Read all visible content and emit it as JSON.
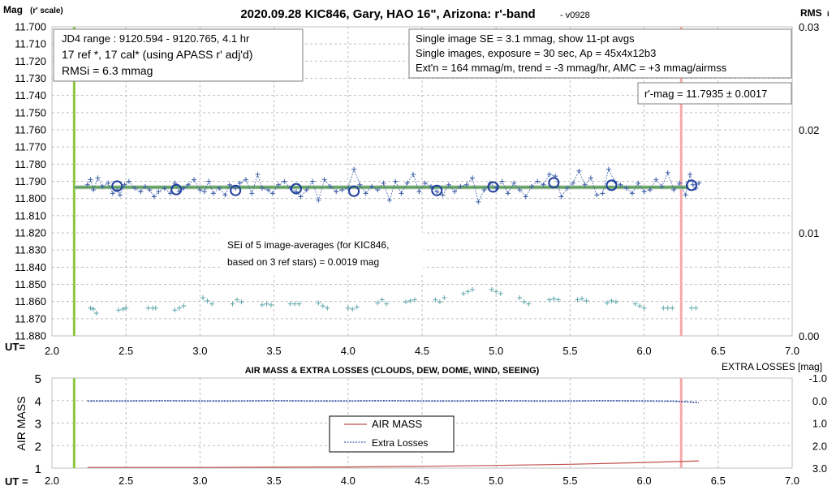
{
  "chart_data": [
    {
      "type": "scatter",
      "title": "2020.09.28 KIC846, Gary, HAO 16\", Arizona: r'-band",
      "title_suffix": "- v0928",
      "ylabel": "Mag",
      "ylabel_sub": "(r' scale)",
      "y2label": "RMS",
      "y2label_sub": "i",
      "xlabel": "UT=",
      "xlim": [
        2.0,
        7.0
      ],
      "ylim": [
        11.7,
        11.88
      ],
      "y_reversed": true,
      "y2lim": [
        0.0,
        0.03
      ],
      "grid": true,
      "x_ticks": [
        "2.0",
        "2.5",
        "3.0",
        "3.5",
        "4.0",
        "4.5",
        "5.0",
        "5.5",
        "6.0",
        "6.5",
        "7.0"
      ],
      "y_ticks": [
        "11.700",
        "11.710",
        "11.720",
        "11.730",
        "11.740",
        "11.750",
        "11.760",
        "11.770",
        "11.780",
        "11.790",
        "11.800",
        "11.810",
        "11.820",
        "11.830",
        "11.840",
        "11.850",
        "11.860",
        "11.870",
        "11.880"
      ],
      "y2_ticks": [
        "0.03",
        "0.02",
        "0.01",
        "0.00"
      ],
      "annotations": {
        "box_left": [
          "JD4 range : 9120.594 - 9120.765,  4.1  hr",
          "17 ref *, 17 cal* (using APASS r' adj'd)",
          "RMSi = 6.3 mmag"
        ],
        "box_right": [
          "Single image SE = 3.1 mmag, show  11-pt avgs",
          "Single images, exposure = 30 sec, Ap = 45x4x12b3",
          "Ext'n = 164 mmag/m, trend =  -3 mmag/hr, AMC = +3 mmag/airmss"
        ],
        "box_mag": "r'-mag = 11.7935 ± 0.0017",
        "box_sei": [
          "SEi of 5 image-averages (for KIC846,",
          "based on 3 ref stars) = 0.0019 mag"
        ]
      },
      "vertical_markers": [
        {
          "x": 2.15,
          "color": "#8dc63f"
        },
        {
          "x": 6.25,
          "color": "#f4a9a8"
        }
      ],
      "fit_line": {
        "x": [
          2.15,
          6.3
        ],
        "y": 11.7935,
        "color": "#5aa55a"
      },
      "series": [
        {
          "kind": "single_images",
          "color": "#3c5fa8",
          "x": [
            2.24,
            2.26,
            2.28,
            2.31,
            2.34,
            2.38,
            2.41,
            2.44,
            2.46,
            2.49,
            2.52,
            2.56,
            2.6,
            2.63,
            2.66,
            2.69,
            2.72,
            2.76,
            2.8,
            2.83,
            2.86,
            2.89,
            2.92,
            2.96,
            3.0,
            3.03,
            3.06,
            3.09,
            3.13,
            3.17,
            3.2,
            3.24,
            3.27,
            3.31,
            3.35,
            3.39,
            3.42,
            3.46,
            3.49,
            3.53,
            3.57,
            3.61,
            3.65,
            3.68,
            3.72,
            3.76,
            3.8,
            3.84,
            3.88,
            3.92,
            3.96,
            4.0,
            4.04,
            4.08,
            4.12,
            4.16,
            4.2,
            4.24,
            4.28,
            4.32,
            4.36,
            4.4,
            4.44,
            4.48,
            4.52,
            4.56,
            4.6,
            4.64,
            4.68,
            4.72,
            4.76,
            4.8,
            4.84,
            4.88,
            4.92,
            4.96,
            5.0,
            5.04,
            5.08,
            5.12,
            5.16,
            5.2,
            5.24,
            5.28,
            5.32,
            5.36,
            5.4,
            5.44,
            5.48,
            5.52,
            5.56,
            5.6,
            5.64,
            5.68,
            5.72,
            5.76,
            5.8,
            5.84,
            5.88,
            5.92,
            5.96,
            6.0,
            6.04,
            6.08,
            6.12,
            6.16,
            6.2,
            6.24,
            6.28,
            6.31,
            6.33,
            6.35,
            6.37
          ],
          "y": [
            11.792,
            11.789,
            11.795,
            11.788,
            11.793,
            11.791,
            11.797,
            11.795,
            11.798,
            11.792,
            11.79,
            11.794,
            11.796,
            11.793,
            11.795,
            11.799,
            11.796,
            11.794,
            11.797,
            11.791,
            11.796,
            11.794,
            11.792,
            11.789,
            11.795,
            11.796,
            11.79,
            11.797,
            11.794,
            11.798,
            11.792,
            11.794,
            11.791,
            11.789,
            11.797,
            11.786,
            11.794,
            11.795,
            11.797,
            11.792,
            11.79,
            11.794,
            11.796,
            11.799,
            11.795,
            11.79,
            11.801,
            11.789,
            11.793,
            11.796,
            11.795,
            11.794,
            11.783,
            11.792,
            11.797,
            11.793,
            11.795,
            11.791,
            11.801,
            11.79,
            11.797,
            11.791,
            11.786,
            11.796,
            11.791,
            11.793,
            11.796,
            11.798,
            11.792,
            11.796,
            11.793,
            11.792,
            11.788,
            11.802,
            11.795,
            11.791,
            11.794,
            11.79,
            11.797,
            11.791,
            11.795,
            11.799,
            11.793,
            11.79,
            11.792,
            11.786,
            11.787,
            11.799,
            11.794,
            11.791,
            11.784,
            11.792,
            11.788,
            11.798,
            11.797,
            11.783,
            11.79,
            11.792,
            11.794,
            11.797,
            11.791,
            11.796,
            11.795,
            11.789,
            11.793,
            11.785,
            11.795,
            11.791,
            11.798,
            11.786,
            11.792,
            11.794,
            11.791
          ]
        },
        {
          "kind": "averages",
          "color": "#1f3f9e",
          "x": [
            2.44,
            2.84,
            3.24,
            3.65,
            4.04,
            4.6,
            4.98,
            5.39,
            5.78,
            6.32
          ],
          "y": [
            11.7928,
            11.7948,
            11.7953,
            11.7943,
            11.7958,
            11.7953,
            11.7933,
            11.7908,
            11.7923,
            11.7923
          ]
        },
        {
          "kind": "rms",
          "axis": "y2",
          "color": "#5fa7a9",
          "x": [
            2.26,
            2.28,
            2.3,
            2.45,
            2.48,
            2.5,
            2.65,
            2.68,
            2.7,
            2.83,
            2.86,
            2.89,
            3.02,
            3.05,
            3.08,
            3.22,
            3.25,
            3.28,
            3.42,
            3.45,
            3.48,
            3.61,
            3.64,
            3.67,
            3.8,
            3.83,
            3.86,
            4.0,
            4.03,
            4.06,
            4.2,
            4.23,
            4.26,
            4.39,
            4.42,
            4.45,
            4.59,
            4.62,
            4.65,
            4.78,
            4.81,
            4.84,
            4.97,
            5.0,
            5.03,
            5.16,
            5.19,
            5.22,
            5.36,
            5.39,
            5.42,
            5.55,
            5.58,
            5.61,
            5.75,
            5.78,
            5.81,
            5.94,
            5.97,
            6.0,
            6.13,
            6.16,
            6.19,
            6.32,
            6.35
          ],
          "y": [
            0.0027,
            0.0026,
            0.0022,
            0.0025,
            0.0026,
            0.0027,
            0.0027,
            0.0027,
            0.0027,
            0.0025,
            0.0027,
            0.0029,
            0.0037,
            0.0034,
            0.0031,
            0.0031,
            0.0035,
            0.0033,
            0.003,
            0.0031,
            0.003,
            0.0031,
            0.0031,
            0.0031,
            0.0032,
            0.0029,
            0.0027,
            0.0027,
            0.0026,
            0.0028,
            0.0032,
            0.0035,
            0.0031,
            0.0033,
            0.0034,
            0.0035,
            0.0035,
            0.0033,
            0.0037,
            0.0041,
            0.0043,
            0.0045,
            0.0045,
            0.0043,
            0.0041,
            0.0037,
            0.0033,
            0.0031,
            0.0035,
            0.0036,
            0.0035,
            0.0035,
            0.0036,
            0.0034,
            0.0032,
            0.0034,
            0.0033,
            0.0031,
            0.0029,
            0.0027,
            0.0027,
            0.0027,
            0.0027,
            0.0027,
            0.0027
          ]
        }
      ]
    },
    {
      "type": "line",
      "title": "AIR MASS & EXTRA LOSSES (CLOUDS, DEW, DOME, WIND, SEEING)",
      "ylabel": "AIR MASS",
      "y2label": "EXTRA LOSSES [mag]",
      "xlabel": "UT =",
      "xlim": [
        2.0,
        7.0
      ],
      "ylim": [
        1,
        5
      ],
      "y2lim": [
        -1.0,
        3.0
      ],
      "y2_reversed": true,
      "grid": true,
      "x_ticks": [
        "2.0",
        "2.5",
        "3.0",
        "3.5",
        "4.0",
        "4.5",
        "5.0",
        "5.5",
        "6.0",
        "6.5",
        "7.0"
      ],
      "y_ticks": [
        "5",
        "4",
        "3",
        "2",
        "1"
      ],
      "y2_ticks": [
        "-1.0",
        "0.0",
        "1.0",
        "2.0",
        "3.0"
      ],
      "legend": [
        "AIR MASS",
        "Extra Losses"
      ],
      "legend_position": "center",
      "vertical_markers": [
        {
          "x": 2.15,
          "color": "#8dc63f"
        },
        {
          "x": 6.25,
          "color": "#f4a9a8"
        }
      ],
      "series": [
        {
          "name": "AIR MASS",
          "color": "#c0504d",
          "x": [
            2.24,
            2.5,
            3.0,
            3.5,
            4.0,
            4.5,
            5.0,
            5.5,
            6.0,
            6.37
          ],
          "y": [
            1.03,
            1.03,
            1.03,
            1.04,
            1.05,
            1.08,
            1.12,
            1.17,
            1.25,
            1.32
          ]
        },
        {
          "name": "Extra Losses",
          "color": "#1f3f9e",
          "x": [
            2.24,
            2.5,
            2.75,
            3.0,
            3.25,
            3.5,
            3.75,
            4.0,
            4.25,
            4.5,
            4.75,
            5.0,
            5.25,
            5.5,
            5.75,
            6.0,
            6.2,
            6.3,
            6.37
          ],
          "y": [
            0.02,
            0.02,
            0.01,
            0.02,
            0.02,
            0.01,
            0.02,
            0.02,
            0.01,
            0.02,
            0.02,
            0.01,
            0.02,
            0.02,
            0.01,
            0.02,
            0.03,
            0.06,
            0.1
          ]
        }
      ]
    }
  ]
}
